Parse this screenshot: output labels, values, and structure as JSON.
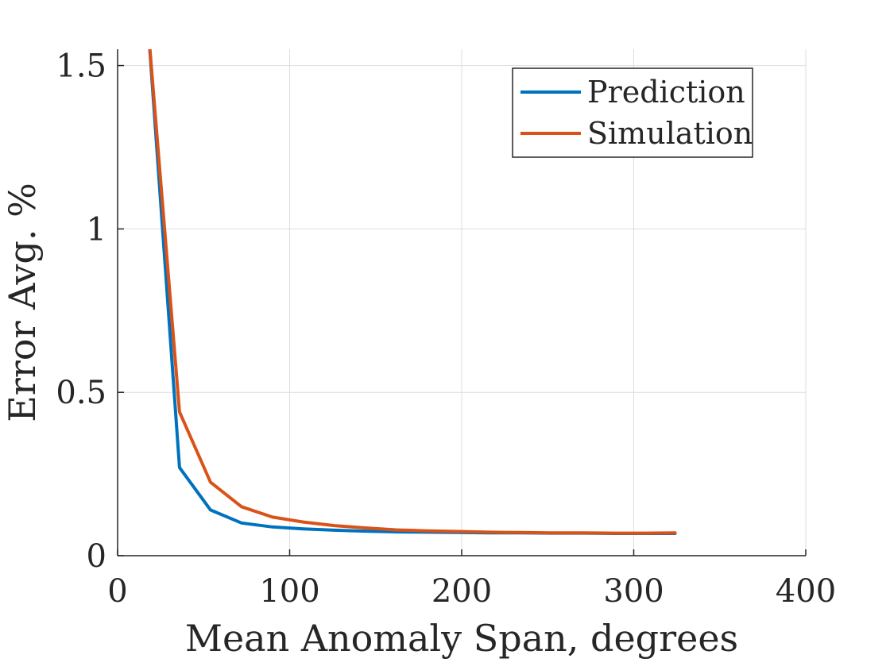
{
  "chart_data": {
    "type": "line",
    "title": "",
    "xlabel": "Mean Anomaly Span, degrees",
    "ylabel": "Error Avg. %",
    "xlim": [
      0,
      400
    ],
    "ylim": [
      0,
      1.55
    ],
    "grid": true,
    "legend": "top-right",
    "x_ticks": [
      0,
      100,
      200,
      300,
      400
    ],
    "x_tick_labels": [
      "0",
      "100",
      "200",
      "300",
      "400"
    ],
    "y_ticks": [
      0,
      0.5,
      1,
      1.5
    ],
    "y_tick_labels": [
      "0",
      "0.5",
      "1",
      "1.5"
    ],
    "series": [
      {
        "name": "Prediction",
        "color": "#0072BD",
        "x": [
          18,
          36,
          54,
          72,
          90,
          108,
          126,
          144,
          162,
          180,
          198,
          216,
          234,
          252,
          270,
          288,
          306,
          324
        ],
        "y": [
          1.6,
          0.27,
          0.14,
          0.1,
          0.088,
          0.082,
          0.078,
          0.075,
          0.073,
          0.072,
          0.071,
          0.07,
          0.07,
          0.069,
          0.069,
          0.068,
          0.068,
          0.068
        ]
      },
      {
        "name": "Simulation",
        "color": "#D95319",
        "x": [
          18,
          36,
          54,
          72,
          90,
          108,
          126,
          144,
          162,
          180,
          198,
          216,
          234,
          252,
          270,
          288,
          306,
          324
        ],
        "y": [
          1.6,
          0.44,
          0.225,
          0.15,
          0.118,
          0.103,
          0.092,
          0.085,
          0.079,
          0.076,
          0.074,
          0.072,
          0.071,
          0.07,
          0.07,
          0.069,
          0.069,
          0.07
        ]
      }
    ]
  }
}
